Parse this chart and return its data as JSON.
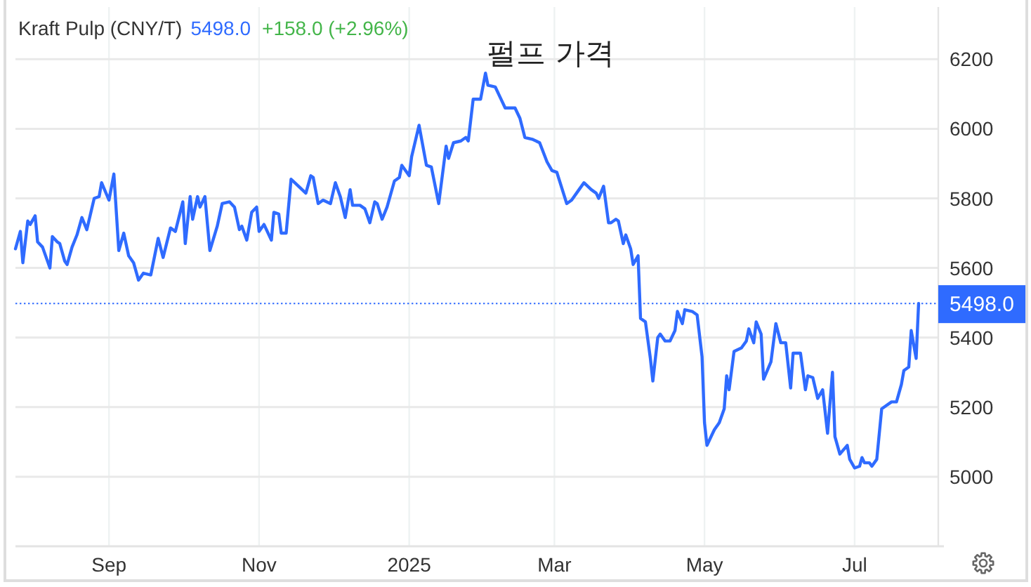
{
  "chart_data": {
    "type": "line",
    "title": "펄프 가격",
    "subtitle": "Kraft Pulp (CNY/T)",
    "annotations": [
      "5498.0",
      "+158.0 (+2.96%)"
    ],
    "x": [
      "2024-07-25",
      "2024-07-27",
      "2024-07-28",
      "2024-07-30",
      "2024-07-31",
      "2024-08-02",
      "2024-08-03",
      "2024-08-05",
      "2024-08-08",
      "2024-08-09",
      "2024-08-11",
      "2024-08-12",
      "2024-08-14",
      "2024-08-15",
      "2024-08-17",
      "2024-08-19",
      "2024-08-21",
      "2024-08-23",
      "2024-08-26",
      "2024-08-28",
      "2024-08-29",
      "2024-09-01",
      "2024-09-03",
      "2024-09-05",
      "2024-09-07",
      "2024-09-09",
      "2024-09-11",
      "2024-09-13",
      "2024-09-15",
      "2024-09-18",
      "2024-09-21",
      "2024-09-23",
      "2024-09-26",
      "2024-09-28",
      "2024-10-01",
      "2024-10-02",
      "2024-10-04",
      "2024-10-05",
      "2024-10-07",
      "2024-10-08",
      "2024-10-10",
      "2024-10-12",
      "2024-10-15",
      "2024-10-17",
      "2024-10-20",
      "2024-10-22",
      "2024-10-24",
      "2024-10-25",
      "2024-10-27",
      "2024-10-29",
      "2024-10-31",
      "2024-11-01",
      "2024-11-03",
      "2024-11-06",
      "2024-11-07",
      "2024-11-09",
      "2024-11-10",
      "2024-11-12",
      "2024-11-14",
      "2024-11-17",
      "2024-11-20",
      "2024-11-22",
      "2024-11-23",
      "2024-11-25",
      "2024-11-27",
      "2024-11-30",
      "2024-12-02",
      "2024-12-04",
      "2024-12-06",
      "2024-12-08",
      "2024-12-09",
      "2024-12-12",
      "2024-12-14",
      "2024-12-16",
      "2024-12-18",
      "2024-12-19",
      "2024-12-21",
      "2024-12-23",
      "2024-12-26",
      "2024-12-28",
      "2024-12-29",
      "2025-01-01",
      "2025-01-02",
      "2025-01-05",
      "2025-01-08",
      "2025-01-10",
      "2025-01-13",
      "2025-01-16",
      "2025-01-17",
      "2025-01-19",
      "2025-01-22",
      "2025-01-24",
      "2025-01-25",
      "2025-01-27",
      "2025-01-30",
      "2025-02-01",
      "2025-02-02",
      "2025-02-05",
      "2025-02-07",
      "2025-02-09",
      "2025-02-13",
      "2025-02-15",
      "2025-02-17",
      "2025-02-20",
      "2025-02-23",
      "2025-02-26",
      "2025-02-28",
      "2025-03-02",
      "2025-03-06",
      "2025-03-08",
      "2025-03-11",
      "2025-03-13",
      "2025-03-16",
      "2025-03-18",
      "2025-03-19",
      "2025-03-21",
      "2025-03-23",
      "2025-03-24",
      "2025-03-26",
      "2025-03-27",
      "2025-03-29",
      "2025-03-30",
      "2025-04-01",
      "2025-04-02",
      "2025-04-04",
      "2025-04-05",
      "2025-04-07",
      "2025-04-09",
      "2025-04-10",
      "2025-04-12",
      "2025-04-13",
      "2025-04-15",
      "2025-04-17",
      "2025-04-19",
      "2025-04-20",
      "2025-04-22",
      "2025-04-23",
      "2025-04-26",
      "2025-04-28",
      "2025-04-30",
      "2025-05-01",
      "2025-05-02",
      "2025-05-05",
      "2025-05-07",
      "2025-05-09",
      "2025-05-10",
      "2025-05-11",
      "2025-05-13",
      "2025-05-16",
      "2025-05-18",
      "2025-05-19",
      "2025-05-21",
      "2025-05-22",
      "2025-05-24",
      "2025-05-25",
      "2025-05-28",
      "2025-05-30",
      "2025-06-01",
      "2025-06-03",
      "2025-06-05",
      "2025-06-06",
      "2025-06-09",
      "2025-06-11",
      "2025-06-12",
      "2025-06-14",
      "2025-06-16",
      "2025-06-18",
      "2025-06-20",
      "2025-06-22",
      "2025-06-23",
      "2025-06-25",
      "2025-06-28",
      "2025-06-29",
      "2025-07-01",
      "2025-07-03",
      "2025-07-04",
      "2025-07-05",
      "2025-07-07",
      "2025-07-08",
      "2025-07-10",
      "2025-07-12",
      "2025-07-14",
      "2025-07-16",
      "2025-07-18",
      "2025-07-20",
      "2025-07-21",
      "2025-07-23",
      "2025-07-24",
      "2025-07-26",
      "2025-07-27"
    ],
    "series": [
      {
        "color": "#2f6bff",
        "values": [
          5655,
          5705,
          5615,
          5735,
          5725,
          5750,
          5675,
          5660,
          5600,
          5690,
          5675,
          5670,
          5620,
          5610,
          5660,
          5695,
          5745,
          5710,
          5800,
          5805,
          5845,
          5795,
          5870,
          5650,
          5700,
          5635,
          5615,
          5565,
          5585,
          5580,
          5685,
          5630,
          5715,
          5705,
          5790,
          5670,
          5805,
          5740,
          5805,
          5775,
          5805,
          5650,
          5720,
          5785,
          5790,
          5775,
          5710,
          5720,
          5680,
          5760,
          5775,
          5705,
          5725,
          5680,
          5760,
          5755,
          5700,
          5700,
          5855,
          5835,
          5815,
          5865,
          5860,
          5785,
          5795,
          5785,
          5845,
          5805,
          5745,
          5825,
          5780,
          5780,
          5770,
          5730,
          5790,
          5785,
          5740,
          5775,
          5850,
          5860,
          5895,
          5865,
          5920,
          6010,
          5895,
          5890,
          5785,
          5950,
          5915,
          5960,
          5965,
          5975,
          5965,
          6085,
          6085,
          6160,
          6125,
          6120,
          6090,
          6060,
          6060,
          6030,
          5975,
          5970,
          5960,
          5905,
          5880,
          5875,
          5785,
          5795,
          5825,
          5845,
          5825,
          5815,
          5800,
          5835,
          5730,
          5730,
          5740,
          5735,
          5670,
          5695,
          5655,
          5610,
          5635,
          5455,
          5445,
          5340,
          5275,
          5400,
          5410,
          5390,
          5390,
          5420,
          5475,
          5440,
          5480,
          5475,
          5465,
          5345,
          5155,
          5090,
          5135,
          5155,
          5195,
          5290,
          5250,
          5360,
          5370,
          5390,
          5425,
          5385,
          5445,
          5410,
          5280,
          5330,
          5440,
          5385,
          5385,
          5255,
          5355,
          5355,
          5250,
          5290,
          5285,
          5225,
          5250,
          5125,
          5300,
          5115,
          5065,
          5090,
          5050,
          5025,
          5030,
          5055,
          5040,
          5040,
          5030,
          5050,
          5195,
          5205,
          5215,
          5215,
          5265,
          5305,
          5315,
          5420,
          5340,
          5498
        ]
      }
    ],
    "xlim": [
      "2024-07-25",
      "2025-08-04"
    ],
    "xticks": [
      {
        "value": "2024-09-01",
        "label": "Sep"
      },
      {
        "value": "2024-11-01",
        "label": "Nov"
      },
      {
        "value": "2025-01-01",
        "label": "2025"
      },
      {
        "value": "2025-03-01",
        "label": "Mar"
      },
      {
        "value": "2025-05-01",
        "label": "May"
      },
      {
        "value": "2025-07-01",
        "label": "Jul"
      }
    ],
    "ylim": [
      4800,
      6350
    ],
    "yticks": [
      5000,
      5200,
      5400,
      5600,
      5800,
      6000,
      6200
    ],
    "grid": true,
    "ref_lines": [
      {
        "axis": "y",
        "value": 5498,
        "label": "5498.0",
        "color": "#2f6bff",
        "line_style": "dotted"
      }
    ]
  }
}
